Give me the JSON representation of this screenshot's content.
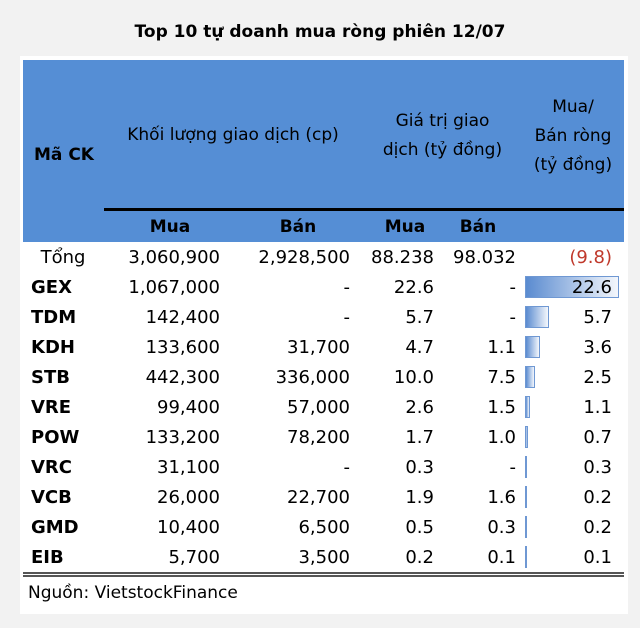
{
  "title": "Top 10 tự doanh mua ròng phiên 12/07",
  "header": {
    "symbol": "Mã CK",
    "volume": "Khối lượng giao dịch (cp)",
    "value_l1": "Giá trị giao",
    "value_l2": "dịch (tỷ đồng)",
    "net_l1": "Mua/",
    "net_l2": "Bán ròng",
    "net_l3": "(tỷ đồng)",
    "buy": "Mua",
    "sell": "Bán",
    "buy2": "Mua",
    "sell2": "Bán"
  },
  "bar_color": "#558ed5",
  "header_color": "#558ed5",
  "negative_color": "#c0392b",
  "total": {
    "symbol": "Tổng",
    "vol_buy": "3,060,900",
    "vol_sell": "2,928,500",
    "val_buy": "88.238",
    "val_sell": "98.032",
    "net": "(9.8)"
  },
  "rows": [
    {
      "symbol": "GEX",
      "vol_buy": "1,067,000",
      "vol_sell": "-",
      "val_buy": "22.6",
      "val_sell": "-",
      "net": "22.6",
      "net_value": 22.6
    },
    {
      "symbol": "TDM",
      "vol_buy": "142,400",
      "vol_sell": "-",
      "val_buy": "5.7",
      "val_sell": "-",
      "net": "5.7",
      "net_value": 5.7
    },
    {
      "symbol": "KDH",
      "vol_buy": "133,600",
      "vol_sell": "31,700",
      "val_buy": "4.7",
      "val_sell": "1.1",
      "net": "3.6",
      "net_value": 3.6
    },
    {
      "symbol": "STB",
      "vol_buy": "442,300",
      "vol_sell": "336,000",
      "val_buy": "10.0",
      "val_sell": "7.5",
      "net": "2.5",
      "net_value": 2.5
    },
    {
      "symbol": "VRE",
      "vol_buy": "99,400",
      "vol_sell": "57,000",
      "val_buy": "2.6",
      "val_sell": "1.5",
      "net": "1.1",
      "net_value": 1.1
    },
    {
      "symbol": "POW",
      "vol_buy": "133,200",
      "vol_sell": "78,200",
      "val_buy": "1.7",
      "val_sell": "1.0",
      "net": "0.7",
      "net_value": 0.7
    },
    {
      "symbol": "VRC",
      "vol_buy": "31,100",
      "vol_sell": "-",
      "val_buy": "0.3",
      "val_sell": "-",
      "net": "0.3",
      "net_value": 0.3
    },
    {
      "symbol": "VCB",
      "vol_buy": "26,000",
      "vol_sell": "22,700",
      "val_buy": "1.9",
      "val_sell": "1.6",
      "net": "0.2",
      "net_value": 0.2
    },
    {
      "symbol": "GMD",
      "vol_buy": "10,400",
      "vol_sell": "6,500",
      "val_buy": "0.5",
      "val_sell": "0.3",
      "net": "0.2",
      "net_value": 0.2
    },
    {
      "symbol": "EIB",
      "vol_buy": "5,700",
      "vol_sell": "3,500",
      "val_buy": "0.2",
      "val_sell": "0.1",
      "net": "0.1",
      "net_value": 0.1
    }
  ],
  "source": "Nguồn: VietstockFinance"
}
